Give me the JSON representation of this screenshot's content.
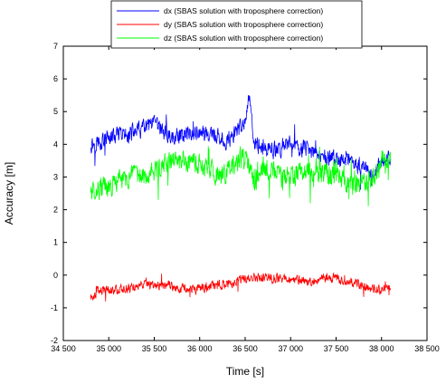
{
  "chart_data": {
    "type": "line",
    "title": "",
    "xlabel": "Time [s]",
    "ylabel": "Accuracy [m]",
    "xlim": [
      34500,
      38500
    ],
    "ylim": [
      -2,
      7
    ],
    "x_ticks": [
      34500,
      35000,
      35500,
      36000,
      36500,
      37000,
      37500,
      38000,
      38500
    ],
    "x_tick_labels": [
      "34 500",
      "35 000",
      "35 500",
      "36 000",
      "36 500",
      "37 000",
      "37 500",
      "38 000",
      "38 500"
    ],
    "y_ticks": [
      -2,
      -1,
      0,
      1,
      2,
      3,
      4,
      5,
      6,
      7
    ],
    "y_tick_labels": [
      "-2",
      "-1",
      "0",
      "1",
      "2",
      "3",
      "4",
      "5",
      "6",
      "7"
    ],
    "grid": false,
    "legend_position": "top-center",
    "x_range": [
      34800,
      38100
    ],
    "series": [
      {
        "name": "dx (SBAS solution with troposphere correction)",
        "color": "#0000ff",
        "noise": 0.35,
        "points": [
          [
            34800,
            4.0
          ],
          [
            35000,
            4.2
          ],
          [
            35200,
            4.3
          ],
          [
            35400,
            4.5
          ],
          [
            35500,
            4.6
          ],
          [
            35700,
            4.2
          ],
          [
            35900,
            4.4
          ],
          [
            36100,
            4.3
          ],
          [
            36300,
            4.1
          ],
          [
            36500,
            4.6
          ],
          [
            36550,
            5.6
          ],
          [
            36600,
            4.0
          ],
          [
            36800,
            3.8
          ],
          [
            37000,
            4.0
          ],
          [
            37200,
            3.8
          ],
          [
            37400,
            3.6
          ],
          [
            37600,
            3.5
          ],
          [
            37800,
            3.3
          ],
          [
            37900,
            3.0
          ],
          [
            38000,
            3.5
          ],
          [
            38100,
            3.6
          ]
        ]
      },
      {
        "name": "dy (SBAS solution with troposphere correction)",
        "color": "#ff0000",
        "noise": 0.2,
        "points": [
          [
            34800,
            -0.7
          ],
          [
            34900,
            -0.45
          ],
          [
            35000,
            -0.45
          ],
          [
            35200,
            -0.4
          ],
          [
            35400,
            -0.3
          ],
          [
            35600,
            -0.3
          ],
          [
            35800,
            -0.4
          ],
          [
            36000,
            -0.4
          ],
          [
            36200,
            -0.3
          ],
          [
            36400,
            -0.2
          ],
          [
            36600,
            -0.05
          ],
          [
            36800,
            -0.1
          ],
          [
            37000,
            -0.1
          ],
          [
            37200,
            -0.2
          ],
          [
            37400,
            -0.05
          ],
          [
            37600,
            -0.15
          ],
          [
            37800,
            -0.35
          ],
          [
            38000,
            -0.45
          ],
          [
            38100,
            -0.4
          ]
        ]
      },
      {
        "name": "dz (SBAS solution with troposphere correction)",
        "color": "#00ff00",
        "noise": 0.45,
        "points": [
          [
            34800,
            2.6
          ],
          [
            34950,
            2.7
          ],
          [
            35000,
            2.6
          ],
          [
            35100,
            2.9
          ],
          [
            35300,
            3.0
          ],
          [
            35500,
            3.2
          ],
          [
            35700,
            3.5
          ],
          [
            35900,
            3.4
          ],
          [
            36100,
            3.3
          ],
          [
            36200,
            3.0
          ],
          [
            36400,
            3.4
          ],
          [
            36500,
            3.6
          ],
          [
            36600,
            2.8
          ],
          [
            36700,
            3.3
          ],
          [
            36900,
            3.0
          ],
          [
            37100,
            3.1
          ],
          [
            37300,
            3.2
          ],
          [
            37500,
            3.0
          ],
          [
            37700,
            2.8
          ],
          [
            37900,
            2.9
          ],
          [
            38000,
            3.5
          ],
          [
            38100,
            3.6
          ]
        ]
      }
    ]
  }
}
